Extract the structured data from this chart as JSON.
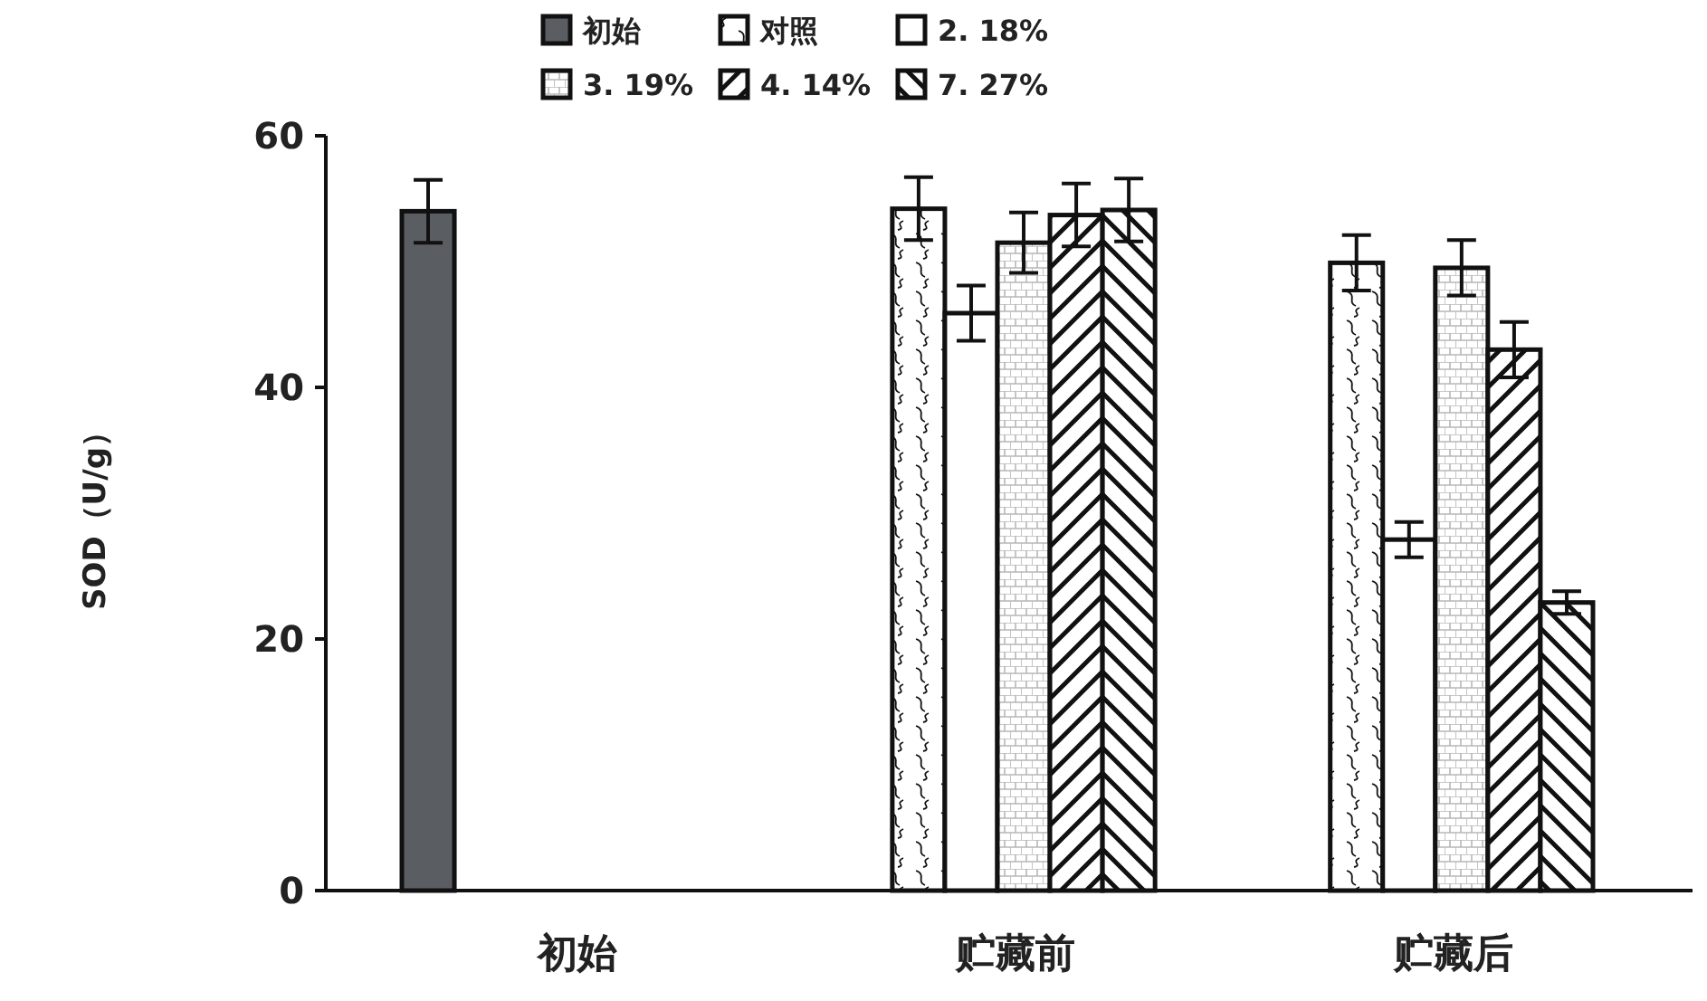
{
  "chart_data": {
    "type": "bar",
    "ylabel": "SOD（U/g）",
    "categories": [
      "初始",
      "贮藏前",
      "贮藏后"
    ],
    "ylim": [
      0,
      60
    ],
    "yticks": [
      0,
      20,
      40,
      60
    ],
    "grid": false,
    "legend": "top",
    "series": [
      {
        "name": "初始",
        "color": "#5a5e63",
        "values": [
          54,
          null,
          null
        ],
        "errors": [
          2.5,
          null,
          null
        ]
      },
      {
        "name": "对照",
        "color": "#111111",
        "values": [
          null,
          54.2,
          49.9
        ],
        "errors": [
          null,
          2.5,
          2.2
        ]
      },
      {
        "name": "2. 18%",
        "color": "#ffffff",
        "values": [
          null,
          45.9,
          27.9
        ],
        "errors": [
          null,
          2.2,
          1.4
        ]
      },
      {
        "name": "3. 19%",
        "color": "#111111",
        "values": [
          null,
          51.5,
          49.5
        ],
        "errors": [
          null,
          2.4,
          2.2
        ]
      },
      {
        "name": "4. 14%",
        "color": "#111111",
        "values": [
          null,
          53.7,
          43
        ],
        "errors": [
          null,
          2.5,
          2.2
        ]
      },
      {
        "name": "7. 27%",
        "color": "#111111",
        "values": [
          null,
          54.1,
          22.9
        ],
        "errors": [
          null,
          2.5,
          0.9
        ]
      }
    ]
  }
}
